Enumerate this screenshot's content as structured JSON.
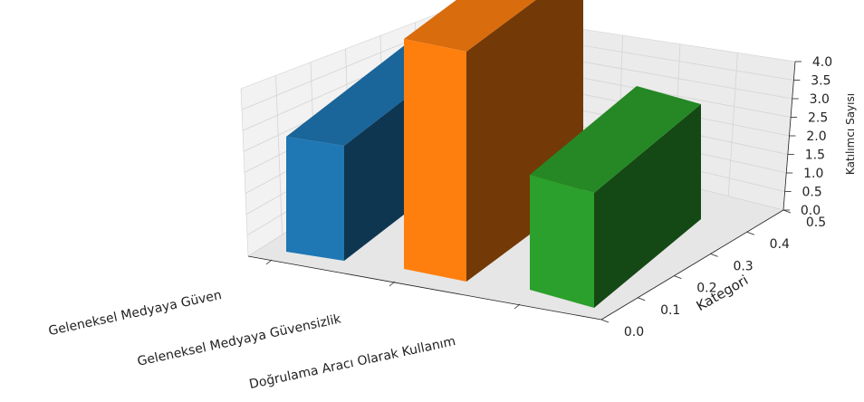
{
  "chart_data": {
    "type": "bar",
    "projection": "3d",
    "categories": [
      "Geleneksel Medyaya Güven",
      "Geleneksel Medyaya Güvensizlik",
      "Doğrulama Aracı Olarak Kullanım"
    ],
    "values": [
      2.0,
      4.0,
      2.0
    ],
    "colors": [
      "#1f77b4",
      "#ff7f0e",
      "#2ca02c"
    ],
    "zlabel": "Katılımcı Sayısı",
    "ylabel": "Kategori",
    "xlabel": "",
    "zlim": [
      0,
      4
    ],
    "ylim": [
      0,
      0.5
    ],
    "z_ticks": [
      "0.0",
      "0.5",
      "1.0",
      "1.5",
      "2.0",
      "2.5",
      "3.0",
      "3.5",
      "4.0"
    ],
    "y_ticks": [
      "0.0",
      "0.1",
      "0.2",
      "0.3",
      "0.4",
      "0.5"
    ],
    "grid": true,
    "pane_color": "#f2f2f2"
  }
}
